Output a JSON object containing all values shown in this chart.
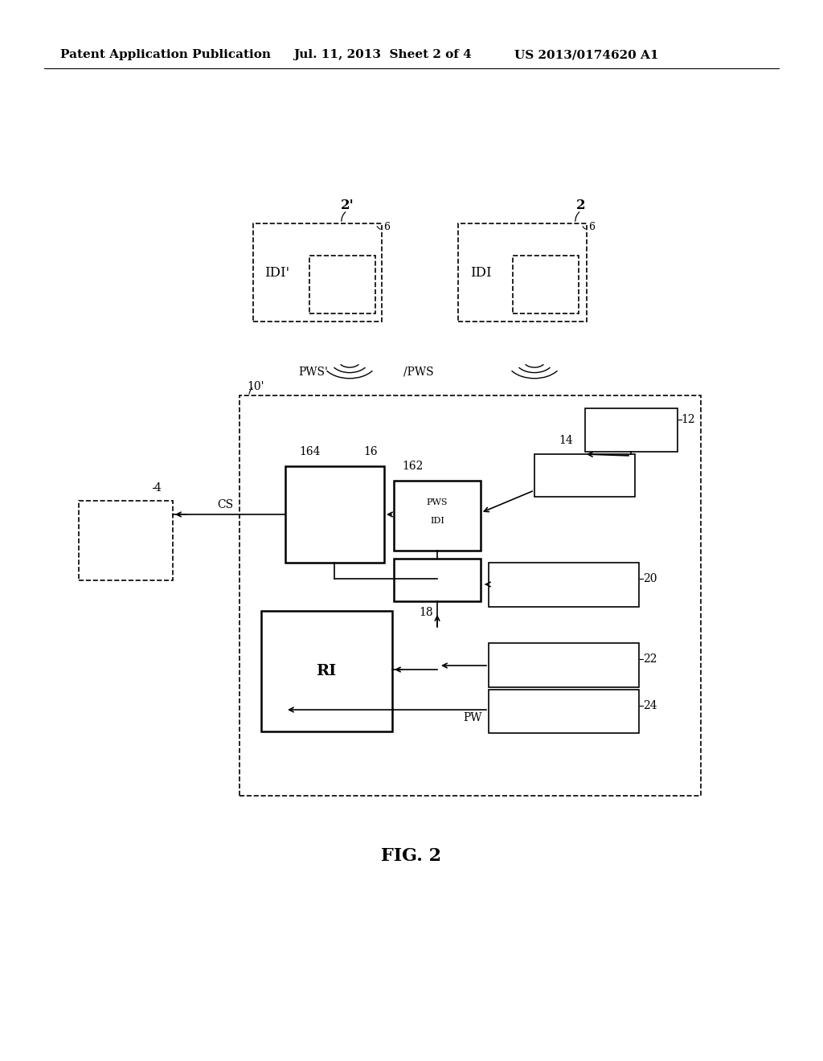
{
  "bg_color": "#ffffff",
  "header_left": "Patent Application Publication",
  "header_mid": "Jul. 11, 2013  Sheet 2 of 4",
  "header_right": "US 2013/0174620 A1",
  "fig_label": "FIG. 2",
  "header_fontsize": 11,
  "fig_label_fontsize": 16,
  "label_fontsize": 12,
  "small_fontsize": 10
}
